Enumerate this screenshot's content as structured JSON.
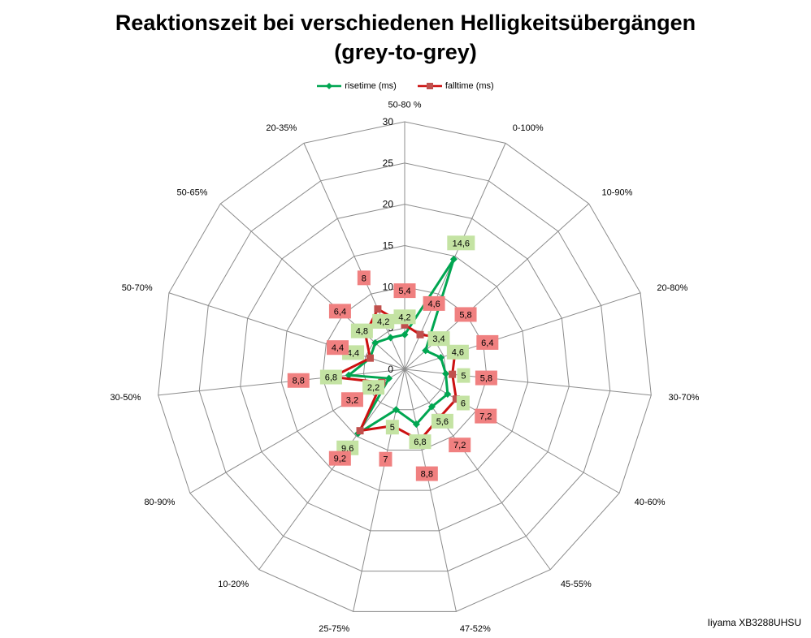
{
  "chart_data": {
    "type": "radar",
    "title_line1": "Reaktionszeit bei verschiedenen Helligkeitsübergängen",
    "title_line2": "(grey-to-grey)",
    "categories": [
      "50-80 %",
      "0-100%",
      "10-90%",
      "20-80%",
      "30-70%",
      "40-60%",
      "45-55%",
      "47-52%",
      "25-75%",
      "10-20%",
      "80-90%",
      "30-50%",
      "50-70%",
      "50-65%",
      "20-35%"
    ],
    "ticks": [
      "0",
      "5",
      "10",
      "15",
      "20",
      "25",
      "30"
    ],
    "rmax": 30,
    "grid": true,
    "legend_position": "top",
    "series": [
      {
        "name": "risetime (ms)",
        "color": "#00a651",
        "label_bg": "#c4e3a3",
        "values": [
          4.2,
          14.6,
          3.4,
          4.6,
          5,
          6,
          5.6,
          6.8,
          5,
          9.6,
          2.2,
          6.8,
          4.4,
          4.8,
          4.2
        ],
        "labels": [
          "4,2",
          "14,6",
          "3,4",
          "4,6",
          "5",
          "6",
          "5,6",
          "6,8",
          "5",
          "9,6",
          "2,2",
          "6,8",
          "4,4",
          "4,8",
          "4,2"
        ]
      },
      {
        "name": "falltime (ms)",
        "color": "#cc1111",
        "label_bg": "#f08080",
        "values": [
          5.4,
          4.6,
          5.8,
          6.4,
          5.8,
          7.2,
          7.2,
          8.8,
          7,
          9.2,
          3.2,
          8.8,
          4.4,
          6.4,
          8
        ],
        "labels": [
          "5,4",
          "4,6",
          "5,8",
          "6,4",
          "5,8",
          "7,2",
          "7,2",
          "8,8",
          "7",
          "9,2",
          "3,2",
          "8,8",
          "4,4",
          "6,4",
          "8"
        ]
      }
    ]
  },
  "watermark": "Iiyama XB3288UHSU"
}
